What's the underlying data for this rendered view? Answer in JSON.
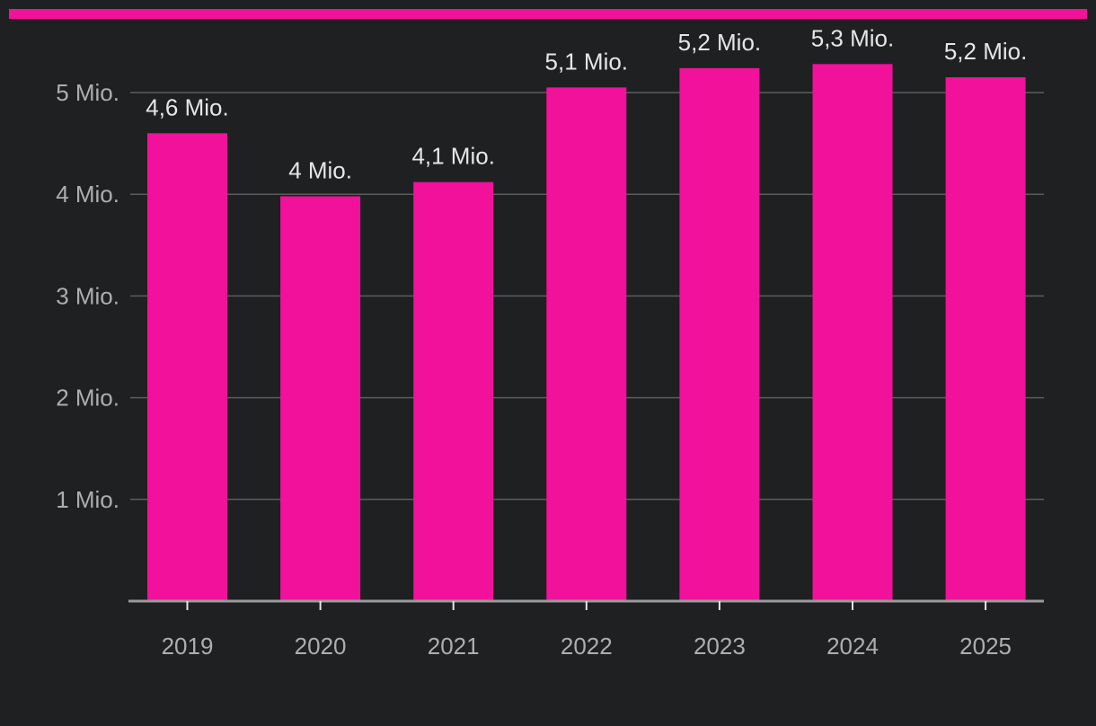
{
  "colors": {
    "background": "#1f2022",
    "bar": "#f2119a",
    "accent": "#f2119a",
    "grid": "#5c5c5e",
    "axis": "#9a9a9a",
    "tick_text": "#aeaeae",
    "label_text": "#e6e6e6"
  },
  "chart_data": {
    "type": "bar",
    "title": "",
    "xlabel": "",
    "ylabel": "",
    "categories": [
      "2019",
      "2020",
      "2021",
      "2022",
      "2023",
      "2024",
      "2025"
    ],
    "values": [
      4.6,
      3.98,
      4.12,
      5.05,
      5.24,
      5.28,
      5.15
    ],
    "value_labels": [
      "4,6 Mio.",
      "4 Mio.",
      "4,1 Mio.",
      "5,1 Mio.",
      "5,2 Mio.",
      "5,3 Mio.",
      "5,2 Mio."
    ],
    "y_ticks": [
      1,
      2,
      3,
      4,
      5
    ],
    "y_tick_labels": [
      "1 Mio.",
      "2 Mio.",
      "3 Mio.",
      "4 Mio.",
      "5 Mio."
    ],
    "ylim": [
      0,
      5
    ],
    "grid": true
  }
}
